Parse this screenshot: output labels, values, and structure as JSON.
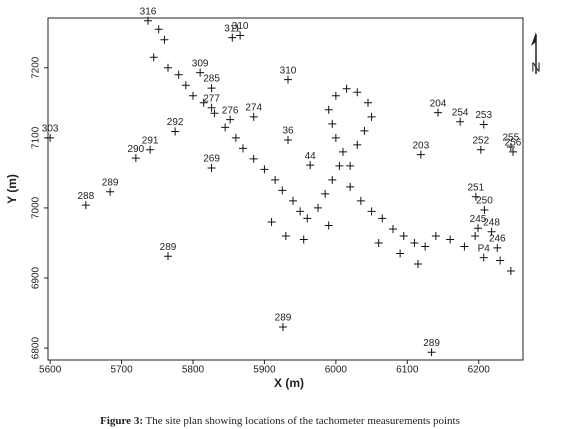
{
  "chart_data": {
    "type": "scatter",
    "x_label": "X (m)",
    "y_label": "Y (m)",
    "north": "N",
    "caption_label": "Figure 3:",
    "caption_text": "The site plan showing locations of the tachometer measurements points",
    "xlim": [
      5597,
      6262
    ],
    "ylim": [
      6783,
      7271
    ],
    "xticks": [
      5600,
      5700,
      5800,
      5900,
      6000,
      6100,
      6200
    ],
    "yticks": [
      6800,
      6900,
      7000,
      7100,
      7200
    ],
    "color": "#111111",
    "x": [
      5600,
      5650,
      5684,
      5720,
      5740,
      5775,
      5765,
      5926,
      6134,
      5933,
      5855,
      5866,
      5810,
      5826,
      5826,
      5852,
      5885,
      5826,
      5933,
      5964,
      6143,
      6174,
      6207,
      6119,
      6203,
      6245,
      6248,
      6196,
      6208,
      6218,
      6226,
      6207,
      6199,
      5737,
      5752,
      5760,
      5745,
      5765,
      5780,
      5790,
      5800,
      5815,
      5830,
      5845,
      5860,
      5870,
      5885,
      5900,
      5915,
      5925,
      5940,
      5950,
      5960,
      5975,
      5985,
      5995,
      6005,
      6010,
      6000,
      5995,
      5990,
      6000,
      6015,
      6030,
      6045,
      6050,
      6040,
      6030,
      6020,
      6020,
      6035,
      6050,
      6065,
      6080,
      6095,
      6110,
      6115,
      6125,
      6140,
      6160,
      6180,
      6195,
      6230,
      6245,
      5910,
      5930,
      5955,
      5990,
      6060,
      6090
    ],
    "values": [
      7100,
      7004,
      7023,
      7071,
      7083,
      7109,
      6931,
      6830,
      6794,
      7183,
      7243,
      7246,
      7193,
      7171,
      7143,
      7126,
      7130,
      7057,
      7097,
      7061,
      7136,
      7123,
      7119,
      7076,
      7083,
      7087,
      7080,
      7016,
      6997,
      6966,
      6943,
      6929,
      6971,
      7267,
      7255,
      7240,
      7215,
      7200,
      7190,
      7175,
      7160,
      7150,
      7135,
      7115,
      7100,
      7085,
      7070,
      7055,
      7040,
      7025,
      7010,
      6995,
      6985,
      7000,
      7020,
      7040,
      7060,
      7080,
      7100,
      7120,
      7140,
      7160,
      7170,
      7165,
      7150,
      7130,
      7110,
      7090,
      7060,
      7030,
      7010,
      6995,
      6985,
      6970,
      6960,
      6950,
      6920,
      6945,
      6960,
      6955,
      6945,
      6960,
      6925,
      6910,
      6980,
      6960,
      6955,
      6975,
      6950,
      6935
    ],
    "point_labels": [
      "303",
      "288",
      "289",
      "290",
      "291",
      "292",
      "289",
      "289",
      "289",
      "310",
      "311",
      "310",
      "309",
      "285",
      "277",
      "276",
      "274",
      "269",
      "36",
      "44",
      "204",
      "254",
      "253",
      "203",
      "252",
      "255",
      "256",
      "251",
      "250",
      "248",
      "246",
      "P4",
      "245",
      "316",
      null,
      null,
      null,
      null,
      null,
      null,
      null,
      null,
      null,
      null,
      null,
      null,
      null,
      null,
      null,
      null,
      null,
      null,
      null,
      null,
      null,
      null,
      null,
      null,
      null,
      null,
      null,
      null,
      null,
      null,
      null,
      null,
      null,
      null,
      null,
      null,
      null,
      null,
      null,
      null,
      null,
      null,
      null,
      null,
      null,
      null,
      null,
      null,
      null,
      null,
      null,
      null,
      null,
      null,
      null,
      null
    ]
  }
}
